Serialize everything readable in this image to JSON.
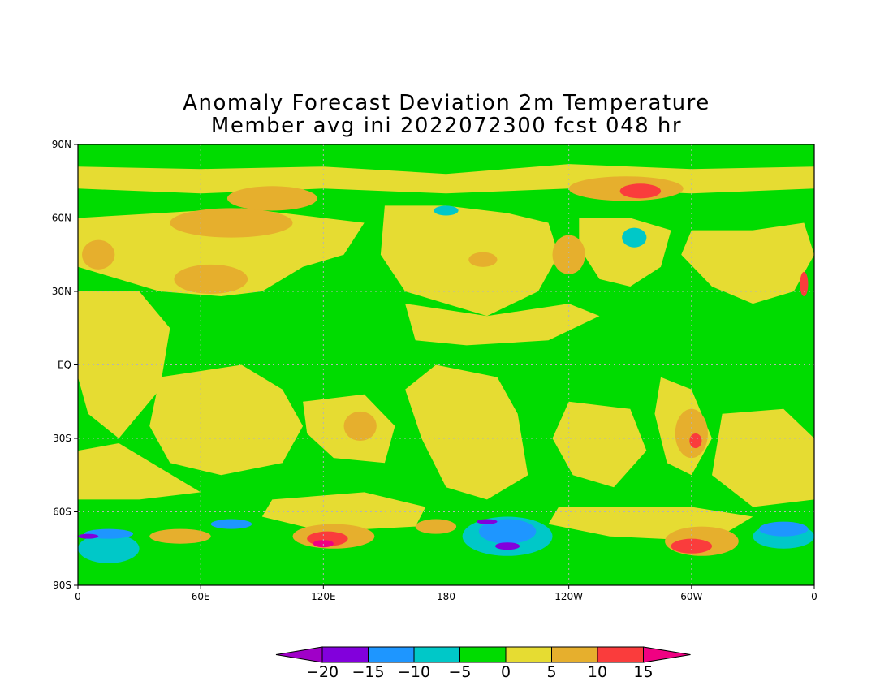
{
  "title": {
    "line1": "Anomaly Forecast Deviation 2m Temperature",
    "line2": "Member avg ini 2022072300 fcst 048 hr"
  },
  "axes": {
    "lat_labels": [
      "90N",
      "60N",
      "30N",
      "EQ",
      "30S",
      "60S",
      "90S"
    ],
    "lon_labels": [
      "0",
      "60E",
      "120E",
      "180",
      "120W",
      "60W",
      "0"
    ]
  },
  "colorbar": {
    "labels": [
      "−20",
      "−15",
      "−10",
      "−5",
      "0",
      "5",
      "10",
      "15"
    ],
    "colors": [
      "#a000c8",
      "#8200dc",
      "#1e96ff",
      "#00c8c8",
      "#00dc00",
      "#e6dc32",
      "#e6af2d",
      "#fa3c3c",
      "#f00082"
    ]
  },
  "field_colors": {
    "m20": "#8200dc",
    "m15": "#1e96ff",
    "m10": "#00c8c8",
    "m5": "#00dc00",
    "p0": "#e6dc32",
    "p5": "#e6af2d",
    "p10": "#fa3c3c",
    "p15": "#f00082"
  }
}
